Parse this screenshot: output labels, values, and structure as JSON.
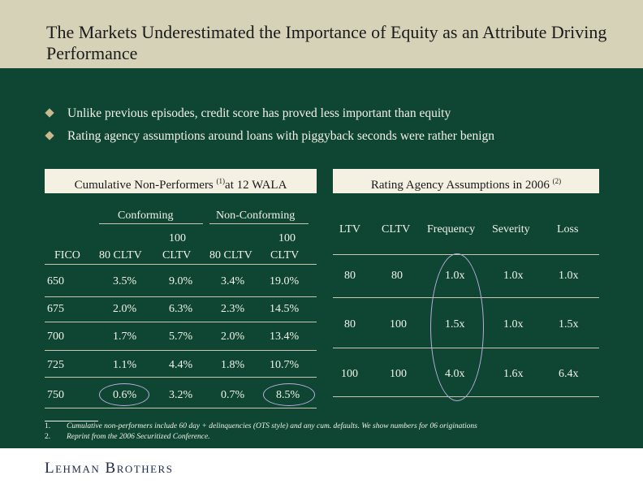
{
  "title": "The Markets Underestimated the Importance of Equity as an Attribute Driving Performance",
  "bullets": [
    "Unlike previous episodes, credit score has proved less important than equity",
    "Rating agency assumptions around loans with piggyback seconds were rather benign"
  ],
  "left_panel": {
    "header_prefix": "Cumulative Non-Performers ",
    "header_sup": "(1)",
    "header_suffix": "at 12 WALA",
    "group_conforming": "Conforming",
    "group_nonconforming": "Non-Conforming",
    "col_fico": "FICO",
    "col_80cltv": "80 CLTV",
    "col_100": "100",
    "col_cltv": "CLTV",
    "rows": [
      {
        "fico": "650",
        "c80": "3.5%",
        "c100": "9.0%",
        "n80": "3.4%",
        "n100": "19.0%"
      },
      {
        "fico": "675",
        "c80": "2.0%",
        "c100": "6.3%",
        "n80": "2.3%",
        "n100": "14.5%"
      },
      {
        "fico": "700",
        "c80": "1.7%",
        "c100": "5.7%",
        "n80": "2.0%",
        "n100": "13.4%"
      },
      {
        "fico": "725",
        "c80": "1.1%",
        "c100": "4.4%",
        "n80": "1.8%",
        "n100": "10.7%"
      },
      {
        "fico": "750",
        "c80": "0.6%",
        "c100": "3.2%",
        "n80": "0.7%",
        "n100": "8.5%"
      }
    ]
  },
  "right_panel": {
    "header_prefix": "Rating Agency Assumptions in 2006 ",
    "header_sup": "(2)",
    "cols": [
      "LTV",
      "CLTV",
      "Frequency",
      "Severity",
      "Loss"
    ],
    "rows": [
      {
        "ltv": "80",
        "cltv": "80",
        "freq": "1.0x",
        "sev": "1.0x",
        "loss": "1.0x"
      },
      {
        "ltv": "80",
        "cltv": "100",
        "freq": "1.5x",
        "sev": "1.0x",
        "loss": "1.5x"
      },
      {
        "ltv": "100",
        "cltv": "100",
        "freq": "4.0x",
        "sev": "1.6x",
        "loss": "6.4x"
      }
    ]
  },
  "footnotes": [
    {
      "n": "1.",
      "text": "Cumulative non-performers include 60 day + delinquencies (OTS style) and any cum. defaults. We show numbers for 06 originations"
    },
    {
      "n": "2.",
      "text": "Reprint from the 2006 Securitized Conference."
    }
  ],
  "logo": "Lehman Brothers",
  "colors": {
    "title_bar": "#d6d2b8",
    "body": "#0f4633",
    "highlight_oval": "#b7aedc"
  }
}
